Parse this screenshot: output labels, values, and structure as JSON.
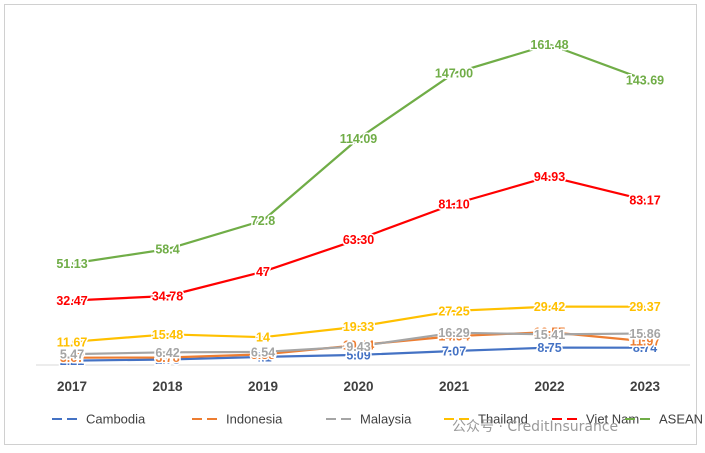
{
  "chart_data": {
    "type": "line",
    "title": "",
    "xlabel": "",
    "ylabel": "",
    "categories": [
      "2017",
      "2018",
      "2019",
      "2020",
      "2021",
      "2022",
      "2023"
    ],
    "ylim": [
      0,
      175
    ],
    "grid": false,
    "legend_position": "bottom",
    "series": [
      {
        "name": "Cambodia",
        "color": "#4472C4",
        "dash": "solid",
        "values": [
          2.21,
          2.78,
          4.1,
          5.09,
          7.07,
          8.75,
          8.74
        ],
        "labels": [
          "2.21",
          "2.78",
          "4.1",
          "5.09",
          "7.07",
          "8.75",
          "8.74"
        ]
      },
      {
        "name": "Indonesia",
        "color": "#ED7D31",
        "dash": "solid",
        "values": [
          3.67,
          3.78,
          5.35,
          10.04,
          14.54,
          16.57,
          11.97
        ],
        "labels": [
          "3.67",
          "3.78",
          "5.35",
          "10.04",
          "14.54",
          "16.57",
          "11.97"
        ]
      },
      {
        "name": "Malaysia",
        "color": "#A5A5A5",
        "dash": "solid",
        "values": [
          5.47,
          6.42,
          6.54,
          9.43,
          16.29,
          15.41,
          15.86
        ],
        "labels": [
          "5.47",
          "6.42",
          "6.54",
          "9.43",
          "16.29",
          "15.41",
          "15.86"
        ]
      },
      {
        "name": "Thailand",
        "color": "#FFC000",
        "dash": "solid",
        "values": [
          11.67,
          15.48,
          14,
          19.33,
          27.25,
          29.42,
          29.37
        ],
        "labels": [
          "11.67",
          "15.48",
          "14",
          "19.33",
          "27.25",
          "29.42",
          "29.37"
        ]
      },
      {
        "name": "Viet Nam",
        "color": "#FF0000",
        "dash": "solid",
        "values": [
          32.47,
          34.78,
          47,
          63.3,
          81.1,
          94.93,
          83.17
        ],
        "labels": [
          "32.47",
          "34.78",
          "47",
          "63.30",
          "81.10",
          "94.93",
          "83.17"
        ]
      },
      {
        "name": "ASEAN",
        "color": "#70AD47",
        "dash": "solid",
        "values": [
          51.13,
          58.4,
          72.8,
          114.09,
          147.0,
          161.48,
          143.69
        ],
        "labels": [
          "51.13",
          "58.4",
          "72.8",
          "114.09",
          "147.00",
          "161.48",
          "143.69"
        ]
      }
    ]
  },
  "watermark": {
    "text": "公众号 · CreditInsurance",
    "color": "#9a9a9a"
  }
}
